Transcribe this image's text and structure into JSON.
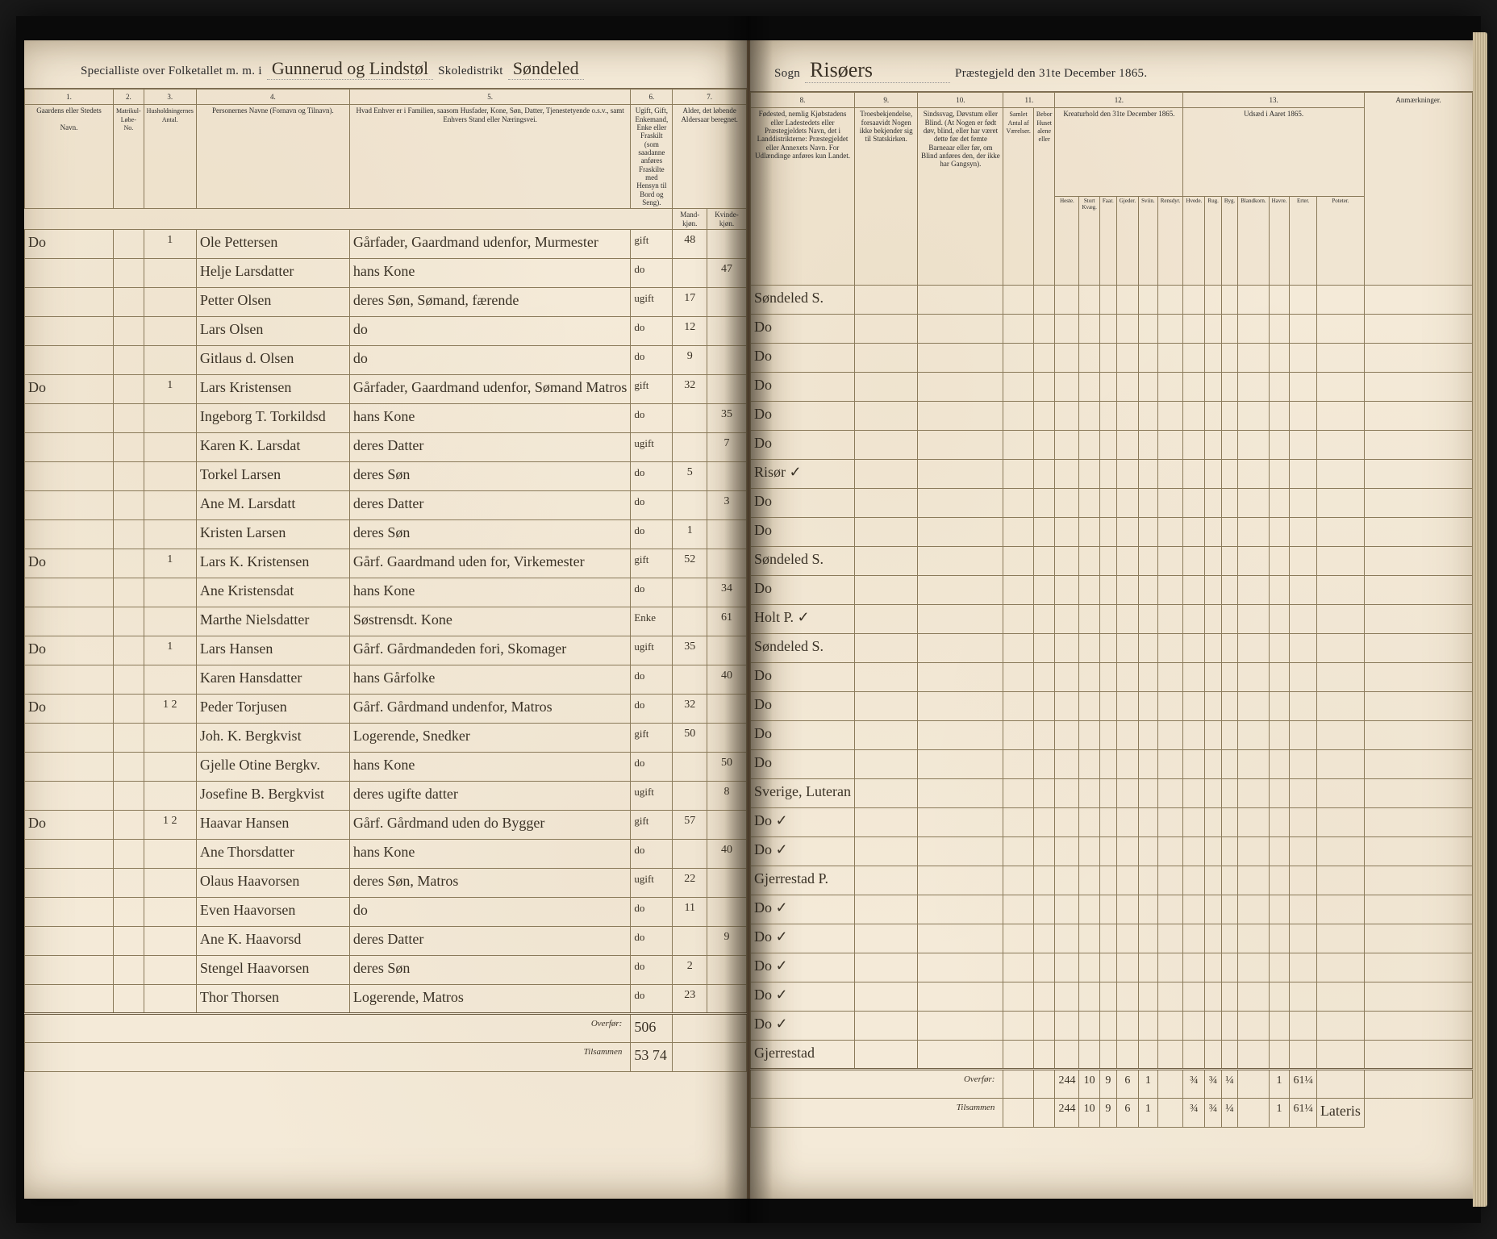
{
  "header": {
    "left_printed_1": "Specialliste over Folketallet m. m. i",
    "district_written": "Gunnerud og Lindstøl",
    "left_printed_2": "Skoledistrikt",
    "parish_written_left": "Søndeled",
    "right_printed_1": "Sogn",
    "parish_written_right": "Risøers",
    "right_printed_2": "Præstegjeld den 31te December 1865."
  },
  "colors": {
    "paper": "#f4ead8",
    "ink": "#3a3226",
    "rule": "#8a7a5a",
    "background": "#1a1a1a"
  },
  "columns_left": {
    "1": "1.",
    "2": "2.",
    "3": "3.",
    "4": "4.",
    "5": "5.",
    "6": "6.",
    "7": "7."
  },
  "columns_right": {
    "8": "8.",
    "9": "9.",
    "10": "10.",
    "11": "11.",
    "12": "12.",
    "13": "13."
  },
  "col_labels_left": {
    "c1a": "Gaardens eller Stedets",
    "c1b": "Navn.",
    "c2": "Matrikul-Løbe-No.",
    "c3": "Husholdningernes Antal.",
    "c4": "Personernes Navne (Fornavn og Tilnavn).",
    "c5": "Hvad Enhver er i Familien, saasom Husfader, Kone, Søn, Datter, Tjenestetyende o.s.v., samt Enhvers Stand eller Næringsvei.",
    "c6": "Ugift, Gift, Enkemand, Enke eller Fraskilt (som saadanne anføres Fraskilte med Hensyn til Bord og Seng).",
    "c7": "Alder, det løbende Aldersaar beregnet.",
    "c7a": "Mand-kjøn.",
    "c7b": "Kvinde-kjøn."
  },
  "col_labels_right": {
    "c8": "Fødested, nemlig Kjøbstadens eller Ladestedets eller Præstegjeldets Navn, det i Landdistrikterne: Præstegjeldet eller Annexets Navn. For Udlændinge anføres kun Landet.",
    "c9": "Troesbekjendelse, forsaavidt Nogen ikke bekjender sig til Statskirken.",
    "c10": "Sindssvag, Døvstum eller Blind. (At Nogen er født døv, blind, eller har været dette før det femte Barneaar eller før, om Blind anføres den, der ikke har Gangsyn).",
    "c11": "",
    "c11a": "Samlet Antal af Værelser.",
    "c11b": "Bebor Huset alene eller",
    "c12": "Kreaturhold den 31te December 1865.",
    "c12_subs": [
      "Heste.",
      "Stort Kvæg.",
      "Faar.",
      "Gjeder.",
      "Sviin.",
      "Rensdyr."
    ],
    "c13": "Udsæd i Aaret 1865.",
    "c13_subs": [
      "Hvede.",
      "Rug.",
      "Byg.",
      "Blandkorn.",
      "Havre.",
      "Erter.",
      "Poteter."
    ],
    "c_rem": "Anmærkninger."
  },
  "rows": [
    {
      "c1": "Do",
      "c2": "",
      "c3": "1",
      "c4": "Ole Pettersen",
      "c5": "Gårfader, Gaardmand udenfor, Murmester",
      "c6": "gift",
      "c7a": "48",
      "c7b": "",
      "c8": "Søndeled S.",
      "c9": "",
      "c10": ""
    },
    {
      "c1": "",
      "c2": "",
      "c3": "",
      "c4": "Helje Larsdatter",
      "c5": "hans Kone",
      "c6": "do",
      "c7a": "",
      "c7b": "47",
      "c8": "Do",
      "c9": "",
      "c10": ""
    },
    {
      "c1": "",
      "c2": "",
      "c3": "",
      "c4": "Petter Olsen",
      "c5": "deres Søn, Sømand, færende",
      "c6": "ugift",
      "c7a": "17",
      "c7b": "",
      "c8": "Do",
      "c9": "",
      "c10": ""
    },
    {
      "c1": "",
      "c2": "",
      "c3": "",
      "c4": "Lars Olsen",
      "c5": "do",
      "c6": "do",
      "c7a": "12",
      "c7b": "",
      "c8": "Do",
      "c9": "",
      "c10": ""
    },
    {
      "c1": "",
      "c2": "",
      "c3": "",
      "c4": "Gitlaus d. Olsen",
      "c5": "do",
      "c6": "do",
      "c7a": "9",
      "c7b": "",
      "c8": "Do",
      "c9": "",
      "c10": ""
    },
    {
      "c1": "Do",
      "c2": "",
      "c3": "1",
      "c4": "Lars Kristensen",
      "c5": "Gårfader, Gaardmand udenfor, Sømand Matros",
      "c6": "gift",
      "c7a": "32",
      "c7b": "",
      "c8": "Do",
      "c9": "",
      "c10": ""
    },
    {
      "c1": "",
      "c2": "",
      "c3": "",
      "c4": "Ingeborg T. Torkildsd",
      "c5": "hans Kone",
      "c6": "do",
      "c7a": "",
      "c7b": "35",
      "c8": "Risør ✓",
      "c9": "",
      "c10": ""
    },
    {
      "c1": "",
      "c2": "",
      "c3": "",
      "c4": "Karen K. Larsdat",
      "c5": "deres Datter",
      "c6": "ugift",
      "c7a": "",
      "c7b": "7",
      "c8": "Do",
      "c9": "",
      "c10": ""
    },
    {
      "c1": "",
      "c2": "",
      "c3": "",
      "c4": "Torkel Larsen",
      "c5": "deres Søn",
      "c6": "do",
      "c7a": "5",
      "c7b": "",
      "c8": "Do",
      "c9": "",
      "c10": ""
    },
    {
      "c1": "",
      "c2": "",
      "c3": "",
      "c4": "Ane M. Larsdatt",
      "c5": "deres Datter",
      "c6": "do",
      "c7a": "",
      "c7b": "3",
      "c8": "Søndeled S.",
      "c9": "",
      "c10": ""
    },
    {
      "c1": "",
      "c2": "",
      "c3": "",
      "c4": "Kristen Larsen",
      "c5": "deres Søn",
      "c6": "do",
      "c7a": "1",
      "c7b": "",
      "c8": "Do",
      "c9": "",
      "c10": ""
    },
    {
      "c1": "Do",
      "c2": "",
      "c3": "1",
      "c4": "Lars K. Kristensen",
      "c5": "Gårf. Gaardmand uden for, Virkemester",
      "c6": "gift",
      "c7a": "52",
      "c7b": "",
      "c8": "Holt P. ✓",
      "c9": "",
      "c10": ""
    },
    {
      "c1": "",
      "c2": "",
      "c3": "",
      "c4": "Ane Kristensdat",
      "c5": "hans Kone",
      "c6": "do",
      "c7a": "",
      "c7b": "34",
      "c8": "Søndeled S.",
      "c9": "",
      "c10": ""
    },
    {
      "c1": "",
      "c2": "",
      "c3": "",
      "c4": "Marthe Nielsdatter",
      "c5": "Søstrensdt. Kone",
      "c6": "Enke",
      "c7a": "",
      "c7b": "61",
      "c8": "Do",
      "c9": "",
      "c10": ""
    },
    {
      "c1": "Do",
      "c2": "",
      "c3": "1",
      "c4": "Lars Hansen",
      "c5": "Gårf. Gårdmandeden fori, Skomager",
      "c6": "ugift",
      "c7a": "35",
      "c7b": "",
      "c8": "Do",
      "c9": "",
      "c10": ""
    },
    {
      "c1": "",
      "c2": "",
      "c3": "",
      "c4": "Karen Hansdatter",
      "c5": "hans Gårfolke",
      "c6": "do",
      "c7a": "",
      "c7b": "40",
      "c8": "Do",
      "c9": "",
      "c10": ""
    },
    {
      "c1": "Do",
      "c2": "",
      "c3": "1 2",
      "c4": "Peder Torjusen",
      "c5": "Gårf. Gårdmand undenfor, Matros",
      "c6": "do",
      "c7a": "32",
      "c7b": "",
      "c8": "Do",
      "c9": "",
      "c10": ""
    },
    {
      "c1": "",
      "c2": "",
      "c3": "",
      "c4": "Joh. K. Bergkvist",
      "c5": "Logerende, Snedker",
      "c6": "gift",
      "c7a": "50",
      "c7b": "",
      "c8": "Sverige, Luteran",
      "c9": "",
      "c10": ""
    },
    {
      "c1": "",
      "c2": "",
      "c3": "",
      "c4": "Gjelle Otine Bergkv.",
      "c5": "hans Kone",
      "c6": "do",
      "c7a": "",
      "c7b": "50",
      "c8": "Do ✓",
      "c9": "",
      "c10": ""
    },
    {
      "c1": "",
      "c2": "",
      "c3": "",
      "c4": "Josefine B. Bergkvist",
      "c5": "deres ugifte datter",
      "c6": "ugift",
      "c7a": "",
      "c7b": "8",
      "c8": "Do ✓",
      "c9": "",
      "c10": ""
    },
    {
      "c1": "Do",
      "c2": "",
      "c3": "1 2",
      "c4": "Haavar Hansen",
      "c5": "Gårf. Gårdmand uden do Bygger",
      "c6": "gift",
      "c7a": "57",
      "c7b": "",
      "c8": "Gjerrestad P.",
      "c9": "",
      "c10": ""
    },
    {
      "c1": "",
      "c2": "",
      "c3": "",
      "c4": "Ane Thorsdatter",
      "c5": "hans Kone",
      "c6": "do",
      "c7a": "",
      "c7b": "40",
      "c8": "Do ✓",
      "c9": "",
      "c10": ""
    },
    {
      "c1": "",
      "c2": "",
      "c3": "",
      "c4": "Olaus Haavorsen",
      "c5": "deres Søn, Matros",
      "c6": "ugift",
      "c7a": "22",
      "c7b": "",
      "c8": "Do ✓",
      "c9": "",
      "c10": ""
    },
    {
      "c1": "",
      "c2": "",
      "c3": "",
      "c4": "Even Haavorsen",
      "c5": "do",
      "c6": "do",
      "c7a": "11",
      "c7b": "",
      "c8": "Do ✓",
      "c9": "",
      "c10": ""
    },
    {
      "c1": "",
      "c2": "",
      "c3": "",
      "c4": "Ane K. Haavorsd",
      "c5": "deres Datter",
      "c6": "do",
      "c7a": "",
      "c7b": "9",
      "c8": "Do ✓",
      "c9": "",
      "c10": ""
    },
    {
      "c1": "",
      "c2": "",
      "c3": "",
      "c4": "Stengel Haavorsen",
      "c5": "deres Søn",
      "c6": "do",
      "c7a": "2",
      "c7b": "",
      "c8": "Do ✓",
      "c9": "",
      "c10": ""
    },
    {
      "c1": "",
      "c2": "",
      "c3": "",
      "c4": "Thor Thorsen",
      "c5": "Logerende, Matros",
      "c6": "do",
      "c7a": "23",
      "c7b": "",
      "c8": "Gjerrestad",
      "c9": "",
      "c10": ""
    }
  ],
  "footer_left": {
    "label1": "Overfør:",
    "label2": "Tilsammen",
    "val1": "506",
    "val2": "53 74"
  },
  "footer_right": {
    "label1": "Overfør:",
    "label2": "Tilsammen",
    "totals1": [
      "244",
      "10",
      "9",
      "6",
      "1",
      "",
      "¾",
      "¾",
      "¼",
      "",
      "1",
      "61¼",
      ""
    ],
    "totals2": [
      "244",
      "10",
      "9",
      "6",
      "1",
      "",
      "¾",
      "¾",
      "¼",
      "",
      "1",
      "61¼",
      "Lateris"
    ]
  }
}
